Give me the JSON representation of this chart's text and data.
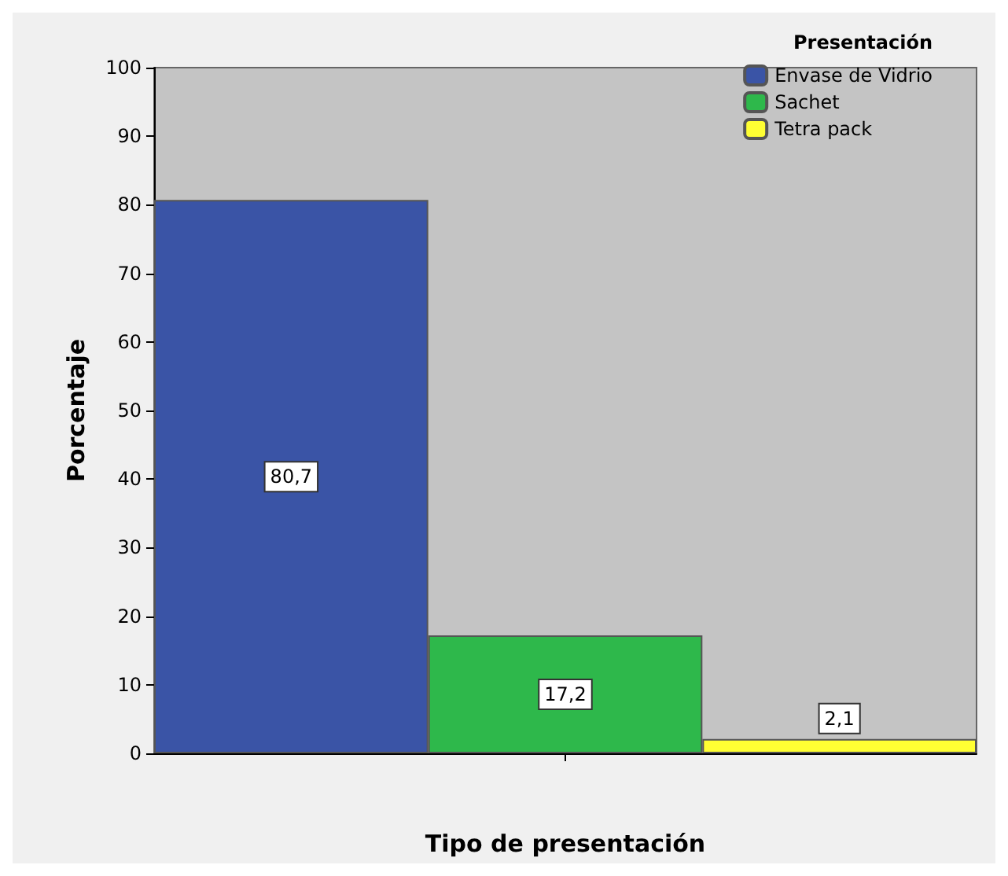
{
  "chart_data": {
    "type": "bar",
    "xlabel": "Tipo de presentación",
    "ylabel": "Porcentaje",
    "legend_title": "Presentación",
    "legend": "top right",
    "categories": [
      null
    ],
    "series": [
      {
        "name": "Envase de Vidrio",
        "color": "#3a54a6",
        "values": [
          80.7
        ],
        "value_labels": [
          "80,7"
        ]
      },
      {
        "name": "Sachet",
        "color": "#2eb84b",
        "values": [
          17.2
        ],
        "value_labels": [
          "17,2"
        ]
      },
      {
        "name": "Tetra pack",
        "color": "#ffff33",
        "values": [
          2.1
        ],
        "value_labels": [
          "2,1"
        ]
      }
    ],
    "ylim": [
      0,
      100
    ],
    "yticks": [
      0,
      10,
      20,
      30,
      40,
      50,
      60,
      70,
      80,
      90,
      100
    ]
  }
}
